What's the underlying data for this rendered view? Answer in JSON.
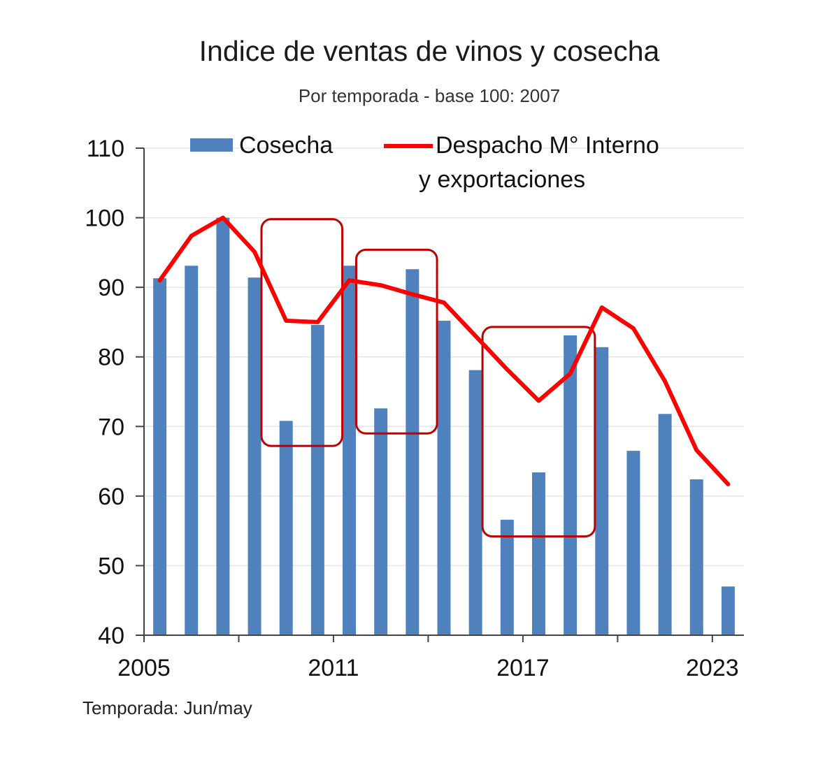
{
  "header": {
    "title": "Indice de ventas de vinos y cosecha",
    "subtitle": "Por temporada - base 100: 2007"
  },
  "footnote": "Temporada: Jun/may",
  "chart_data": {
    "type": "bar",
    "title": "Indice de ventas de vinos y cosecha",
    "subtitle": "Por temporada - base 100: 2007",
    "x": [
      2005,
      2006,
      2007,
      2008,
      2009,
      2010,
      2011,
      2012,
      2013,
      2014,
      2015,
      2016,
      2017,
      2018,
      2019,
      2020,
      2021,
      2022,
      2023
    ],
    "x_tick_labels": [
      "2005",
      "2011",
      "2017",
      "2023"
    ],
    "ylim": [
      40,
      110
    ],
    "y_ticks": [
      40,
      50,
      60,
      70,
      80,
      90,
      100,
      110
    ],
    "grid": true,
    "legend_position": "top",
    "series": [
      {
        "name": "Cosecha",
        "type": "bar",
        "color": "#4f81bd",
        "values": [
          91.3,
          93.1,
          100,
          91.4,
          70.8,
          84.6,
          93.1,
          72.6,
          92.6,
          85.2,
          78.1,
          56.6,
          63.4,
          83.1,
          81.4,
          66.5,
          71.8,
          62.4,
          47.0
        ]
      },
      {
        "name": "Despacho M° Interno y exportaciones",
        "name_lines": [
          "Despacho M° Interno",
          "y exportaciones"
        ],
        "type": "line",
        "color": "#ff0000",
        "values": [
          91.0,
          97.4,
          100,
          95.1,
          85.2,
          85.0,
          91.0,
          90.3,
          89.0,
          87.8,
          83.0,
          78.2,
          73.7,
          77.6,
          87.1,
          84.1,
          76.5,
          66.6,
          61.7
        ]
      }
    ],
    "annotations": [
      {
        "type": "highlight-box",
        "from": 2009,
        "to": 2010,
        "y_range": [
          67.2,
          99.8
        ]
      },
      {
        "type": "highlight-box",
        "from": 2012,
        "to": 2013,
        "y_range": [
          69.0,
          95.4
        ]
      },
      {
        "type": "highlight-box",
        "from": 2016,
        "to": 2018,
        "y_range": [
          54.2,
          84.3
        ]
      }
    ]
  }
}
